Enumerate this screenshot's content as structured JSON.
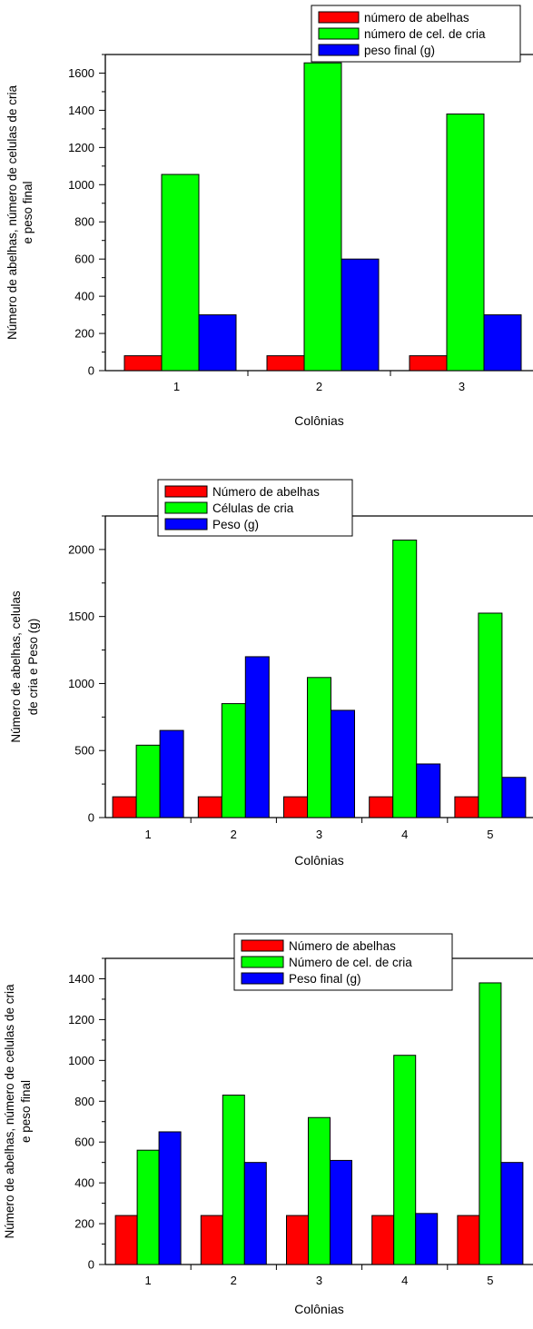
{
  "chart_data": [
    {
      "type": "bar",
      "categories": [
        "1",
        "2",
        "3"
      ],
      "series": [
        {
          "name": "número de abelhas",
          "values": [
            80,
            80,
            80
          ]
        },
        {
          "name": "número de cel. de cria",
          "values": [
            1055,
            1655,
            1380
          ]
        },
        {
          "name": "peso final (g)",
          "values": [
            300,
            600,
            300
          ]
        }
      ],
      "colors": [
        "#ff0000",
        "#00ff00",
        "#0000ff"
      ],
      "xlabel": "Colônias",
      "ylabel": [
        "Número  de abelhas, número de celulas de cria",
        "e peso final"
      ],
      "yticks": [
        0,
        200,
        400,
        600,
        800,
        1000,
        1200,
        1400,
        1600
      ],
      "ylim": [
        0,
        1700
      ],
      "legend_position": "top-right",
      "grid": false
    },
    {
      "type": "bar",
      "categories": [
        "1",
        "2",
        "3",
        "4",
        "5"
      ],
      "series": [
        {
          "name": "Número de abelhas",
          "values": [
            155,
            155,
            155,
            155,
            155
          ]
        },
        {
          "name": "Células de cria",
          "values": [
            540,
            850,
            1045,
            2070,
            1525
          ]
        },
        {
          "name": "Peso (g)",
          "values": [
            650,
            1200,
            800,
            400,
            300
          ]
        }
      ],
      "colors": [
        "#ff0000",
        "#00ff00",
        "#0000ff"
      ],
      "xlabel": "Colônias",
      "ylabel": [
        "Número de abelhas, celulas",
        "de cria e Peso (g)"
      ],
      "yticks": [
        0,
        500,
        1000,
        1500,
        2000
      ],
      "ylim": [
        0,
        2250
      ],
      "legend_position": "top-center",
      "grid": false
    },
    {
      "type": "bar",
      "categories": [
        "1",
        "2",
        "3",
        "4",
        "5"
      ],
      "series": [
        {
          "name": "Número de abelhas",
          "values": [
            240,
            240,
            240,
            240,
            240
          ]
        },
        {
          "name": "Número de cel. de cria",
          "values": [
            560,
            830,
            720,
            1025,
            1380
          ]
        },
        {
          "name": "Peso final (g)",
          "values": [
            650,
            500,
            510,
            250,
            500
          ]
        }
      ],
      "colors": [
        "#ff0000",
        "#00ff00",
        "#0000ff"
      ],
      "xlabel": "Colônias",
      "ylabel": [
        "Número de abelhas, número de celulas de cria",
        "e peso final"
      ],
      "yticks": [
        0,
        200,
        400,
        600,
        800,
        1000,
        1200,
        1400
      ],
      "ylim": [
        0,
        1500
      ],
      "legend_position": "top-center",
      "grid": false
    }
  ]
}
